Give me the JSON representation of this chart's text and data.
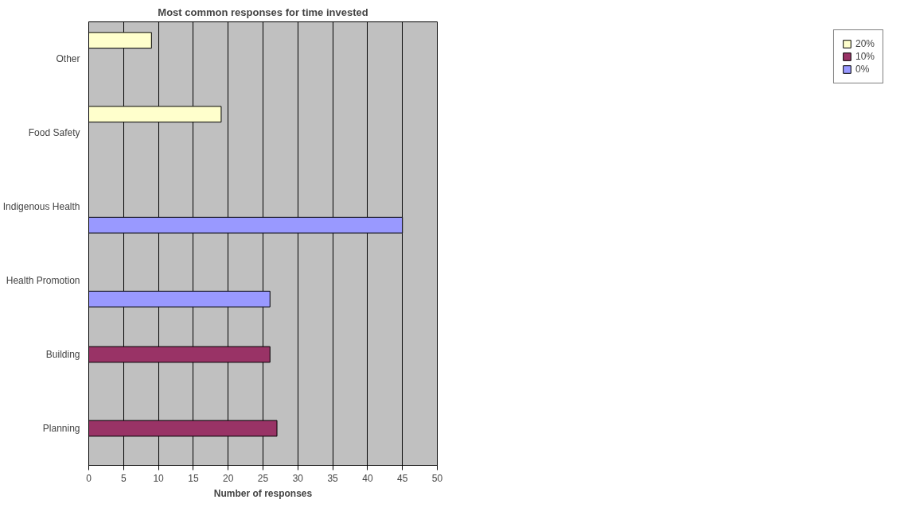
{
  "chart_data": {
    "type": "bar",
    "orientation": "horizontal",
    "title": "Most common responses for time invested",
    "xlabel": "Number of responses",
    "categories": [
      "Other",
      "Food Safety",
      "Indigenous Health",
      "Health Promotion",
      "Building",
      "Planning"
    ],
    "series": [
      {
        "name": "20%",
        "color": "#ffffcc",
        "values": [
          9,
          19,
          null,
          null,
          null,
          null
        ]
      },
      {
        "name": "10%",
        "color": "#993366",
        "values": [
          null,
          null,
          null,
          null,
          26,
          27
        ]
      },
      {
        "name": "0%",
        "color": "#9999ff",
        "values": [
          null,
          null,
          45,
          26,
          null,
          null
        ]
      }
    ],
    "xlim": [
      0,
      50
    ],
    "xticks": [
      0,
      5,
      10,
      15,
      20,
      25,
      30,
      35,
      40,
      45,
      50
    ],
    "grid": "x",
    "legend": "right"
  }
}
